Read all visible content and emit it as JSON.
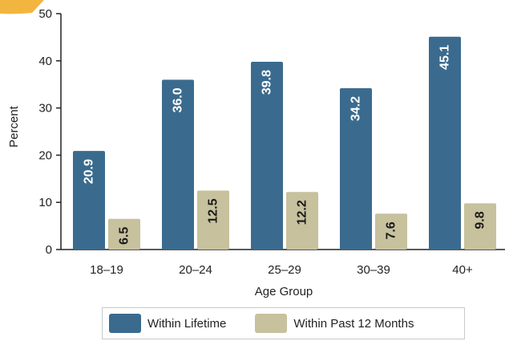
{
  "colors": {
    "lifetime": "#3a6b8e",
    "past12": "#c7c19d",
    "axis": "#222222",
    "corner": "#f2b640"
  },
  "chart_data": {
    "type": "bar",
    "categories": [
      "18–19",
      "20–24",
      "25–29",
      "30–39",
      "40+"
    ],
    "series": [
      {
        "name": "Within Lifetime",
        "values": [
          20.9,
          36.0,
          39.8,
          34.2,
          45.1
        ],
        "labels": [
          "20.9",
          "36.0",
          "39.8",
          "34.2",
          "45.1"
        ]
      },
      {
        "name": "Within Past 12 Months",
        "values": [
          6.5,
          12.5,
          12.2,
          7.6,
          9.8
        ],
        "labels": [
          "6.5",
          "12.5",
          "12.2",
          "7.6",
          "9.8"
        ]
      }
    ],
    "yticks": [
      "0",
      "10",
      "20",
      "30",
      "40",
      "50"
    ],
    "ytick_values": [
      0,
      10,
      20,
      30,
      40,
      50
    ],
    "xlabel": "Age Group",
    "ylabel": "Percent",
    "ylim": [
      0,
      50
    ],
    "grid": false,
    "legend_position": "bottom"
  }
}
